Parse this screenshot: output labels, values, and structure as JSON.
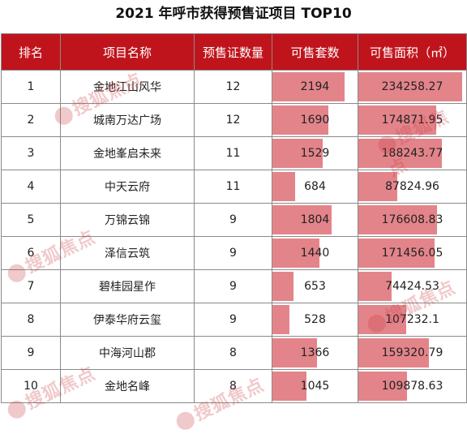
{
  "title": "2021 年呼市获得预售证项目 TOP10",
  "headers": [
    "排名",
    "项目名称",
    "预售证数量",
    "可售套数",
    "可售面积（㎡）"
  ],
  "rows": [
    {
      "rank": "1",
      "name": "金地江山风华",
      "permits": "12",
      "units": "2194",
      "area": "234258.27"
    },
    {
      "rank": "2",
      "name": "城南万达广场",
      "permits": "12",
      "units": "1690",
      "area": "174871.95"
    },
    {
      "rank": "3",
      "name": "金地峯启未来",
      "permits": "11",
      "units": "1529",
      "area": "188243.77"
    },
    {
      "rank": "4",
      "name": "中天云府",
      "permits": "11",
      "units": "684",
      "area": "87824.96"
    },
    {
      "rank": "5",
      "name": "万锦云锦",
      "permits": "9",
      "units": "1804",
      "area": "176608.83"
    },
    {
      "rank": "6",
      "name": "泽信云筑",
      "permits": "9",
      "units": "1440",
      "area": "171456.05"
    },
    {
      "rank": "7",
      "name": "碧桂园星作",
      "permits": "9",
      "units": "653",
      "area": "74424.53"
    },
    {
      "rank": "8",
      "name": "伊泰华府云玺",
      "permits": "9",
      "units": "528",
      "area": "107232.1"
    },
    {
      "rank": "9",
      "name": "中海河山郡",
      "permits": "8",
      "units": "1366",
      "area": "159320.79"
    },
    {
      "rank": "10",
      "name": "金地名峰",
      "permits": "8",
      "units": "1045",
      "area": "109878.63"
    }
  ],
  "colors": {
    "header_bg": "#c0141c",
    "bar": "#e3848a"
  },
  "watermark": {
    "text": "搜狐焦点"
  }
}
